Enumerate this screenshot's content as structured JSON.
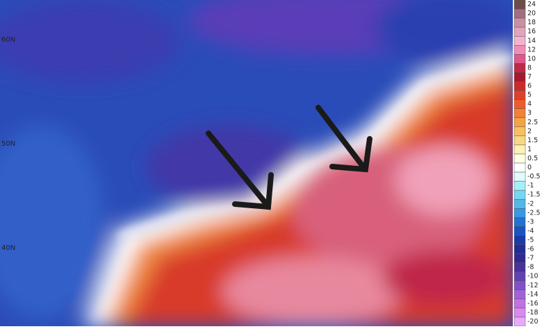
{
  "lat_labels": [
    "60N",
    "50N",
    "40N"
  ],
  "colorbar": {
    "labels": [
      "24",
      "20",
      "18",
      "16",
      "14",
      "12",
      "10",
      "8",
      "7",
      "6",
      "5",
      "4",
      "3",
      "2.5",
      "2",
      "1.5",
      "1",
      "0.5",
      "0",
      "-0.5",
      "-1",
      "-1.5",
      "-2",
      "-2.5",
      "-3",
      "-4",
      "-5",
      "-6",
      "-7",
      "-8",
      "-10",
      "-12",
      "-14",
      "-16",
      "-18",
      "-20"
    ],
    "colors": [
      "#6e4b4b",
      "#a07080",
      "#c890a0",
      "#e0a4bc",
      "#f2b4cc",
      "#f28cb8",
      "#e05888",
      "#c02848",
      "#a81830",
      "#cc2a2a",
      "#e0402a",
      "#ee5c2a",
      "#f28234",
      "#f4a444",
      "#f8c062",
      "#f8d884",
      "#fff0b4",
      "#fffde4",
      "#ffffff",
      "#e0fbff",
      "#a4f0f8",
      "#74d8f0",
      "#52b8e8",
      "#3898e0",
      "#2272d2",
      "#1a54c0",
      "#1a3aa8",
      "#222c92",
      "#302a90",
      "#4a3298",
      "#6242b0",
      "#8052c6",
      "#a062d8",
      "#c072e2",
      "#d88af0",
      "#e8aaf8"
    ]
  }
}
